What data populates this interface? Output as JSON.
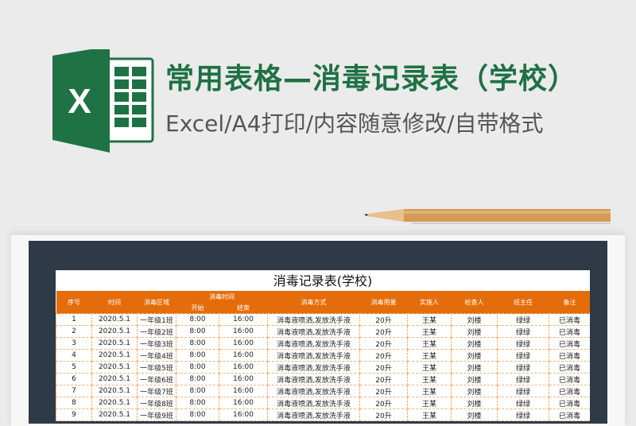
{
  "banner": {
    "title": "常用表格—消毒记录表（学校）",
    "subtitle": "Excel/A4打印/内容随意修改/自带格式",
    "logo_letter": "X",
    "brand_color": "#1e7145"
  },
  "sheet": {
    "title": "消毒记录表(学校)",
    "header_color": "#e46c0a",
    "headers": {
      "no": "序号",
      "date": "时间",
      "area": "消毒区域",
      "time_group": "消毒时间",
      "start": "开始",
      "end": "结束",
      "method": "消毒方式",
      "amount": "消毒用量",
      "executor": "实施人",
      "inspector": "检查人",
      "teacher": "班主任",
      "note": "备注"
    },
    "rows": [
      [
        "1",
        "2020.5.1",
        "一年级1班",
        "8:00",
        "16:00",
        "消毒液喷洒,发放洗手液",
        "20升",
        "王某",
        "刘楼",
        "绿绿",
        "已消毒"
      ],
      [
        "2",
        "2020.5.1",
        "一年级2班",
        "8:00",
        "16:00",
        "消毒液喷洒,发放洗手液",
        "20升",
        "王某",
        "刘楼",
        "绿绿",
        "已消毒"
      ],
      [
        "3",
        "2020.5.1",
        "一年级3班",
        "8:00",
        "16:00",
        "消毒液喷洒,发放洗手液",
        "20升",
        "王某",
        "刘楼",
        "绿绿",
        "已消毒"
      ],
      [
        "4",
        "2020.5.1",
        "一年级4班",
        "8:00",
        "16:00",
        "消毒液喷洒,发放洗手液",
        "20升",
        "王某",
        "刘楼",
        "绿绿",
        "已消毒"
      ],
      [
        "5",
        "2020.5.1",
        "一年级5班",
        "8:00",
        "16:00",
        "消毒液喷洒,发放洗手液",
        "20升",
        "王某",
        "刘楼",
        "绿绿",
        "已消毒"
      ],
      [
        "6",
        "2020.5.1",
        "一年级6班",
        "8:00",
        "16:00",
        "消毒液喷洒,发放洗手液",
        "20升",
        "王某",
        "刘楼",
        "绿绿",
        "已消毒"
      ],
      [
        "7",
        "2020.5.1",
        "一年级7班",
        "8:00",
        "16:00",
        "消毒液喷洒,发放洗手液",
        "20升",
        "王某",
        "刘楼",
        "绿绿",
        "已消毒"
      ],
      [
        "8",
        "2020.5.1",
        "一年级8班",
        "8:00",
        "16:00",
        "消毒液喷洒,发放洗手液",
        "20升",
        "王某",
        "刘楼",
        "绿绿",
        "已消毒"
      ],
      [
        "9",
        "2020.5.1",
        "一年级9班",
        "8:00",
        "16:00",
        "消毒液喷洒,发放洗手液",
        "20升",
        "王某",
        "刘楼",
        "绿绿",
        "已消毒"
      ]
    ]
  }
}
